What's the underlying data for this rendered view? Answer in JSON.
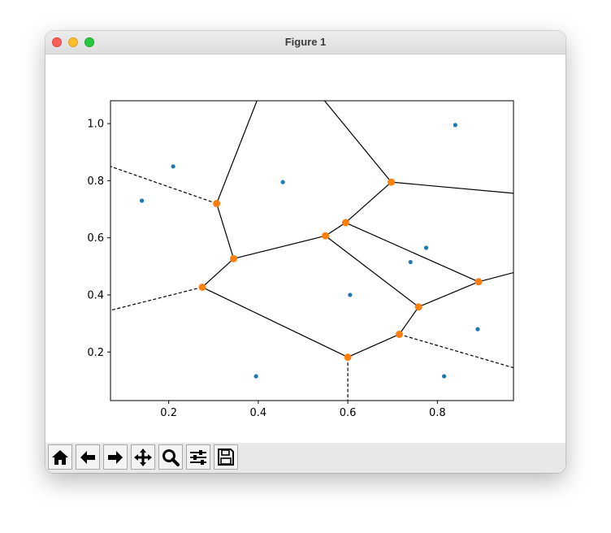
{
  "window": {
    "title": "Figure 1"
  },
  "toolbar": {
    "buttons": [
      {
        "name": "home-button",
        "icon": "home-icon"
      },
      {
        "name": "back-button",
        "icon": "arrow-left-icon"
      },
      {
        "name": "forward-button",
        "icon": "arrow-right-icon"
      },
      {
        "name": "pan-button",
        "icon": "move-icon"
      },
      {
        "name": "zoom-button",
        "icon": "magnifier-icon"
      },
      {
        "name": "configure-subplots-button",
        "icon": "sliders-icon"
      },
      {
        "name": "save-button",
        "icon": "floppy-disk-icon"
      }
    ]
  },
  "chart_data": {
    "type": "scatter",
    "title": "",
    "xlabel": "",
    "ylabel": "",
    "xlim": [
      0.07,
      0.97
    ],
    "ylim": [
      0.03,
      1.08
    ],
    "xticks": [
      0.2,
      0.4,
      0.6,
      0.8
    ],
    "yticks": [
      0.2,
      0.4,
      0.6,
      0.8,
      1.0
    ],
    "tick_labels_x": [
      "0.2",
      "0.4",
      "0.6",
      "0.8"
    ],
    "tick_labels_y": [
      "0.2",
      "0.4",
      "0.6",
      "0.8",
      "1.0"
    ],
    "grid": false,
    "colors": {
      "points": "#1f77b4",
      "vertices": "#ff7f0e",
      "edges": "#000000"
    },
    "points": [
      {
        "x": 0.14,
        "y": 0.73
      },
      {
        "x": 0.21,
        "y": 0.85
      },
      {
        "x": 0.455,
        "y": 0.795
      },
      {
        "x": 0.84,
        "y": 0.995
      },
      {
        "x": 0.775,
        "y": 0.565
      },
      {
        "x": 0.74,
        "y": 0.515
      },
      {
        "x": 0.605,
        "y": 0.4
      },
      {
        "x": 0.89,
        "y": 0.28
      },
      {
        "x": 0.395,
        "y": 0.115
      },
      {
        "x": 0.815,
        "y": 0.115
      }
    ],
    "vertices": [
      {
        "x": 0.307,
        "y": 0.72
      },
      {
        "x": 0.345,
        "y": 0.527
      },
      {
        "x": 0.275,
        "y": 0.427
      },
      {
        "x": 0.55,
        "y": 0.607
      },
      {
        "x": 0.595,
        "y": 0.653
      },
      {
        "x": 0.697,
        "y": 0.795
      },
      {
        "x": 0.892,
        "y": 0.446
      },
      {
        "x": 0.758,
        "y": 0.358
      },
      {
        "x": 0.715,
        "y": 0.262
      },
      {
        "x": 0.6,
        "y": 0.182
      }
    ],
    "finite_edges": [
      [
        [
          0.307,
          0.72
        ],
        [
          0.345,
          0.527
        ]
      ],
      [
        [
          0.345,
          0.527
        ],
        [
          0.275,
          0.427
        ]
      ],
      [
        [
          0.345,
          0.527
        ],
        [
          0.55,
          0.607
        ]
      ],
      [
        [
          0.55,
          0.607
        ],
        [
          0.595,
          0.653
        ]
      ],
      [
        [
          0.595,
          0.653
        ],
        [
          0.697,
          0.795
        ]
      ],
      [
        [
          0.595,
          0.653
        ],
        [
          0.892,
          0.446
        ]
      ],
      [
        [
          0.55,
          0.607
        ],
        [
          0.758,
          0.358
        ]
      ],
      [
        [
          0.758,
          0.358
        ],
        [
          0.892,
          0.446
        ]
      ],
      [
        [
          0.758,
          0.358
        ],
        [
          0.715,
          0.262
        ]
      ],
      [
        [
          0.715,
          0.262
        ],
        [
          0.6,
          0.182
        ]
      ],
      [
        [
          0.6,
          0.182
        ],
        [
          0.275,
          0.427
        ]
      ],
      [
        [
          0.307,
          0.72
        ],
        [
          0.397,
          1.08
        ]
      ],
      [
        [
          0.697,
          0.795
        ],
        [
          0.548,
          1.08
        ]
      ],
      [
        [
          0.697,
          0.795
        ],
        [
          0.97,
          0.756
        ]
      ],
      [
        [
          0.892,
          0.446
        ],
        [
          0.97,
          0.478
        ]
      ]
    ],
    "infinite_edges": [
      [
        [
          0.307,
          0.72
        ],
        [
          0.07,
          0.85
        ]
      ],
      [
        [
          0.275,
          0.427
        ],
        [
          0.07,
          0.346
        ]
      ],
      [
        [
          0.6,
          0.182
        ],
        [
          0.6,
          0.03
        ]
      ],
      [
        [
          0.715,
          0.262
        ],
        [
          0.97,
          0.145
        ]
      ]
    ]
  }
}
